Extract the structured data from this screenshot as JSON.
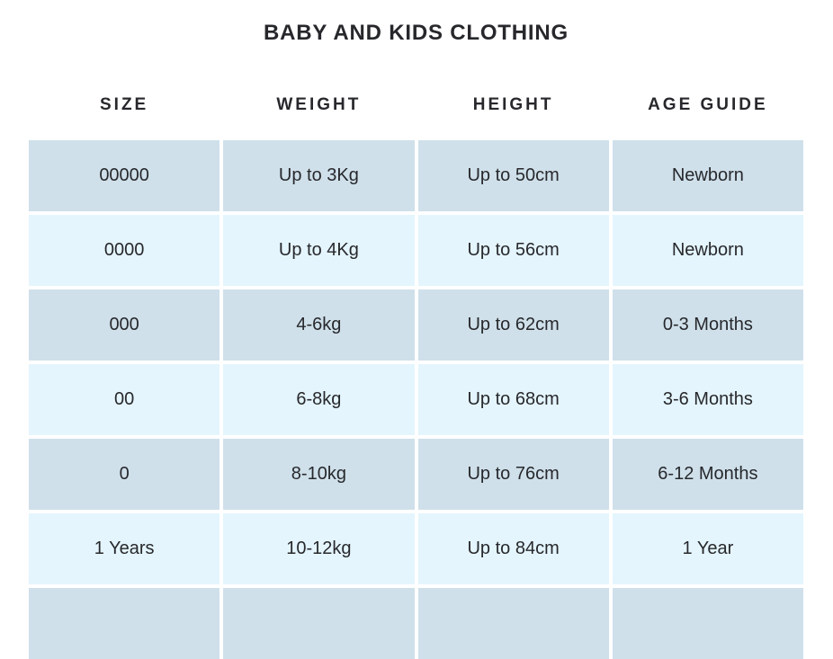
{
  "title": "BABY AND KIDS CLOTHING",
  "table": {
    "columns": [
      "SIZE",
      "WEIGHT",
      "HEIGHT",
      "AGE GUIDE"
    ],
    "rows": [
      [
        "00000",
        "Up to 3Kg",
        "Up to 50cm",
        "Newborn"
      ],
      [
        "0000",
        "Up to 4Kg",
        "Up to 56cm",
        "Newborn"
      ],
      [
        "000",
        "4-6kg",
        "Up to 62cm",
        "0-3 Months"
      ],
      [
        "00",
        "6-8kg",
        "Up to 68cm",
        "3-6 Months"
      ],
      [
        "0",
        "8-10kg",
        "Up to 76cm",
        "6-12 Months"
      ],
      [
        "1 Years",
        "10-12kg",
        "Up to 84cm",
        "1 Year"
      ]
    ],
    "partial_row_visible": true
  },
  "colors": {
    "row_odd": "#cfe0ea",
    "row_even": "#e4f5fd",
    "text": "#27282c",
    "background": "#ffffff"
  }
}
